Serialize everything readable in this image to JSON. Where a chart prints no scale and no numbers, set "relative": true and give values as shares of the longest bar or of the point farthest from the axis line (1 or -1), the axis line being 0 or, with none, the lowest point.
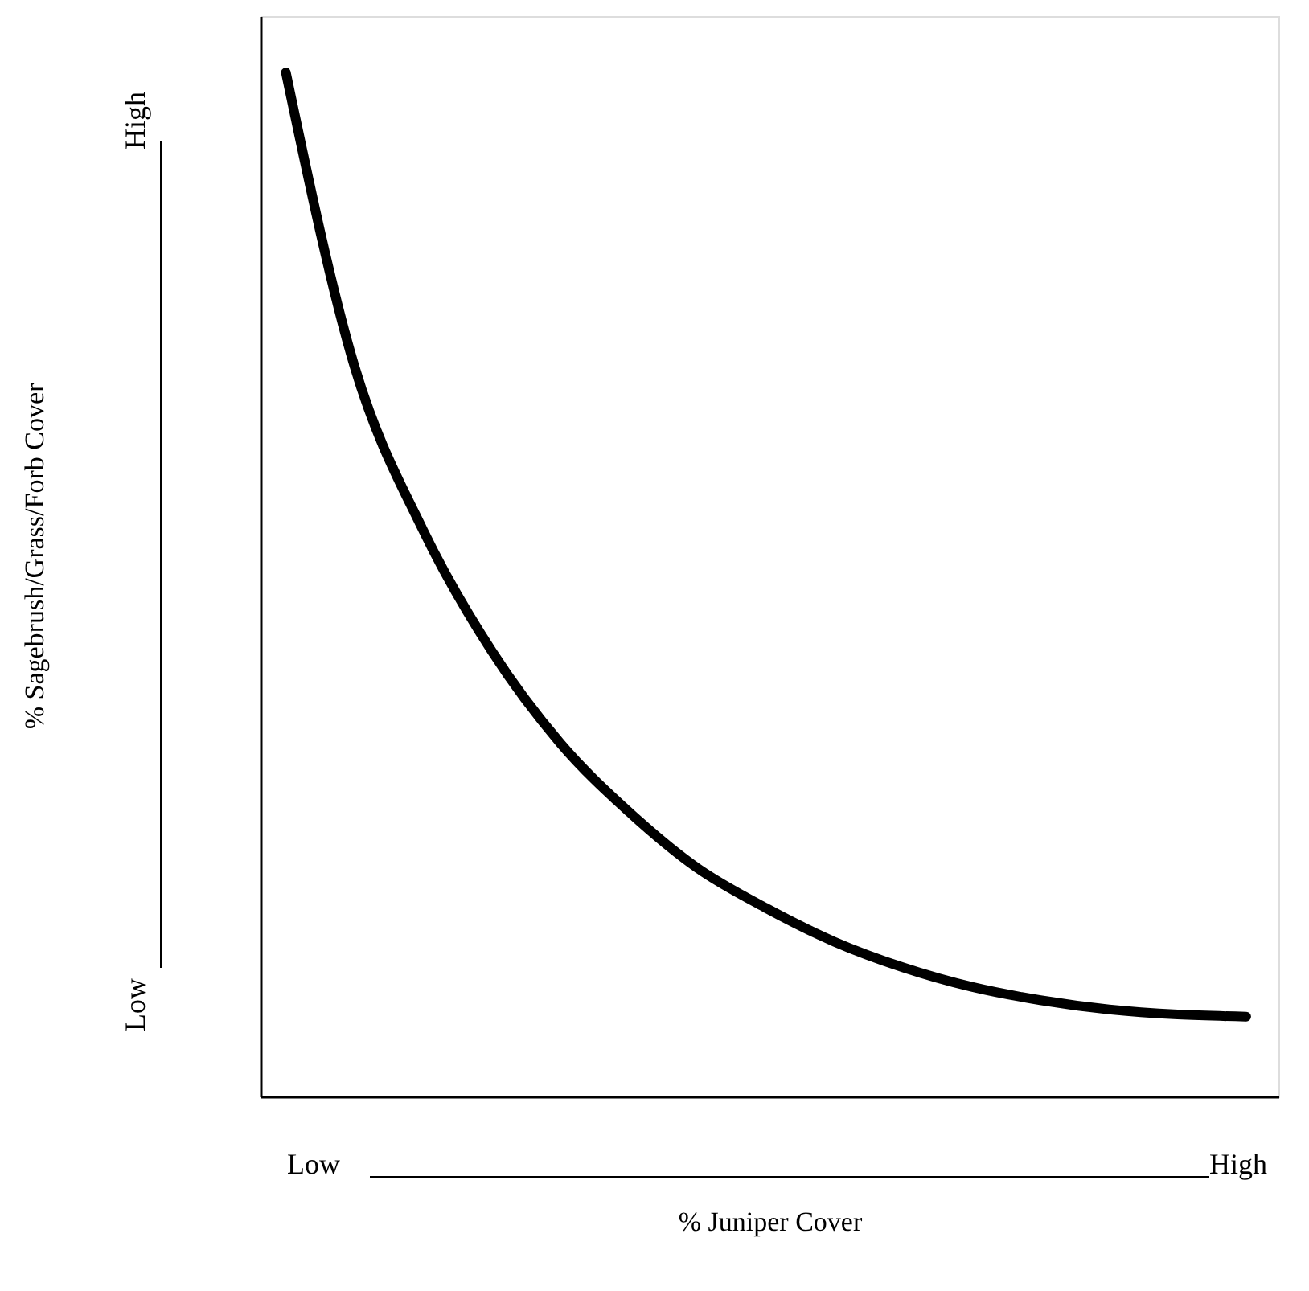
{
  "chart_data": {
    "type": "line",
    "relative": true,
    "xlabel": "% Juniper Cover",
    "categories": [
      null,
      null,
      null,
      null,
      null,
      null,
      null,
      null,
      null,
      null,
      null,
      null,
      null,
      null,
      null
    ],
    "series": [
      {
        "color": "#000000",
        "values": [
          1.0,
          0.713,
          0.553,
          0.435,
          0.345,
          0.278,
          0.223,
          0.184,
          0.151,
          0.126,
          0.107,
          0.094,
          0.085,
          0.08,
          0.078
        ]
      }
    ],
    "annotations": [
      "Low",
      "High",
      "Low",
      "High",
      "% Sagebrush/Grass/Forb Cover"
    ],
    "grid": false,
    "tick_labels": false,
    "marker": "none",
    "line_style": "solid"
  }
}
